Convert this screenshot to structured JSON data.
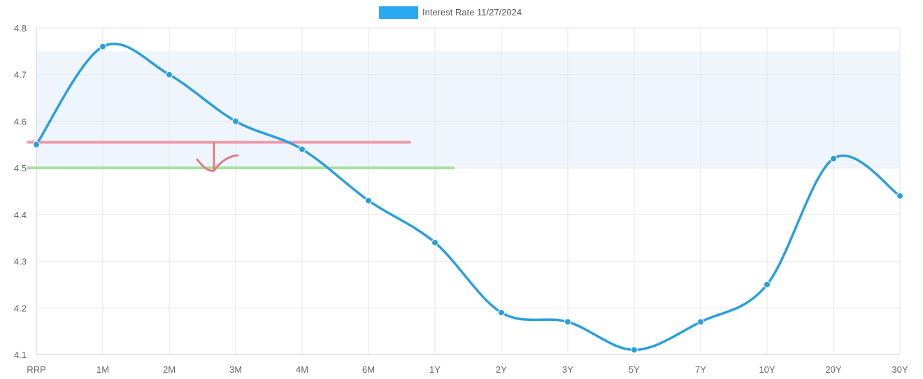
{
  "chart_data": {
    "type": "line",
    "categories": [
      "RRP",
      "1M",
      "2M",
      "3M",
      "4M",
      "6M",
      "1Y",
      "2Y",
      "3Y",
      "5Y",
      "7Y",
      "10Y",
      "20Y",
      "30Y"
    ],
    "series": [
      {
        "name": "Interest Rate 11/27/2024",
        "values": [
          4.55,
          4.76,
          4.7,
          4.6,
          4.54,
          4.43,
          4.34,
          4.19,
          4.17,
          4.11,
          4.17,
          4.25,
          4.52,
          4.44
        ],
        "color": "#2a9fdc"
      }
    ],
    "y_ticks": [
      "4.1",
      "4.2",
      "4.3",
      "4.4",
      "4.5",
      "4.6",
      "4.7",
      "4.8"
    ],
    "ylim": [
      4.1,
      4.8
    ],
    "grid": true,
    "legend_position": "top-center",
    "legend_swatch_color": "#2aa8f2",
    "shaded_band": {
      "y_from": 4.5,
      "y_to": 4.75,
      "color": "#eef5fd"
    },
    "annotations": {
      "red_line": {
        "y": 4.555,
        "x_from": "RRP",
        "x_to": "1Y",
        "color": "#ec9aa8"
      },
      "green_line": {
        "y": 4.5,
        "x_from": "RRP",
        "x_to": "1Y",
        "color": "#a8e0a2"
      },
      "arrow_color": "#e07c86"
    }
  }
}
